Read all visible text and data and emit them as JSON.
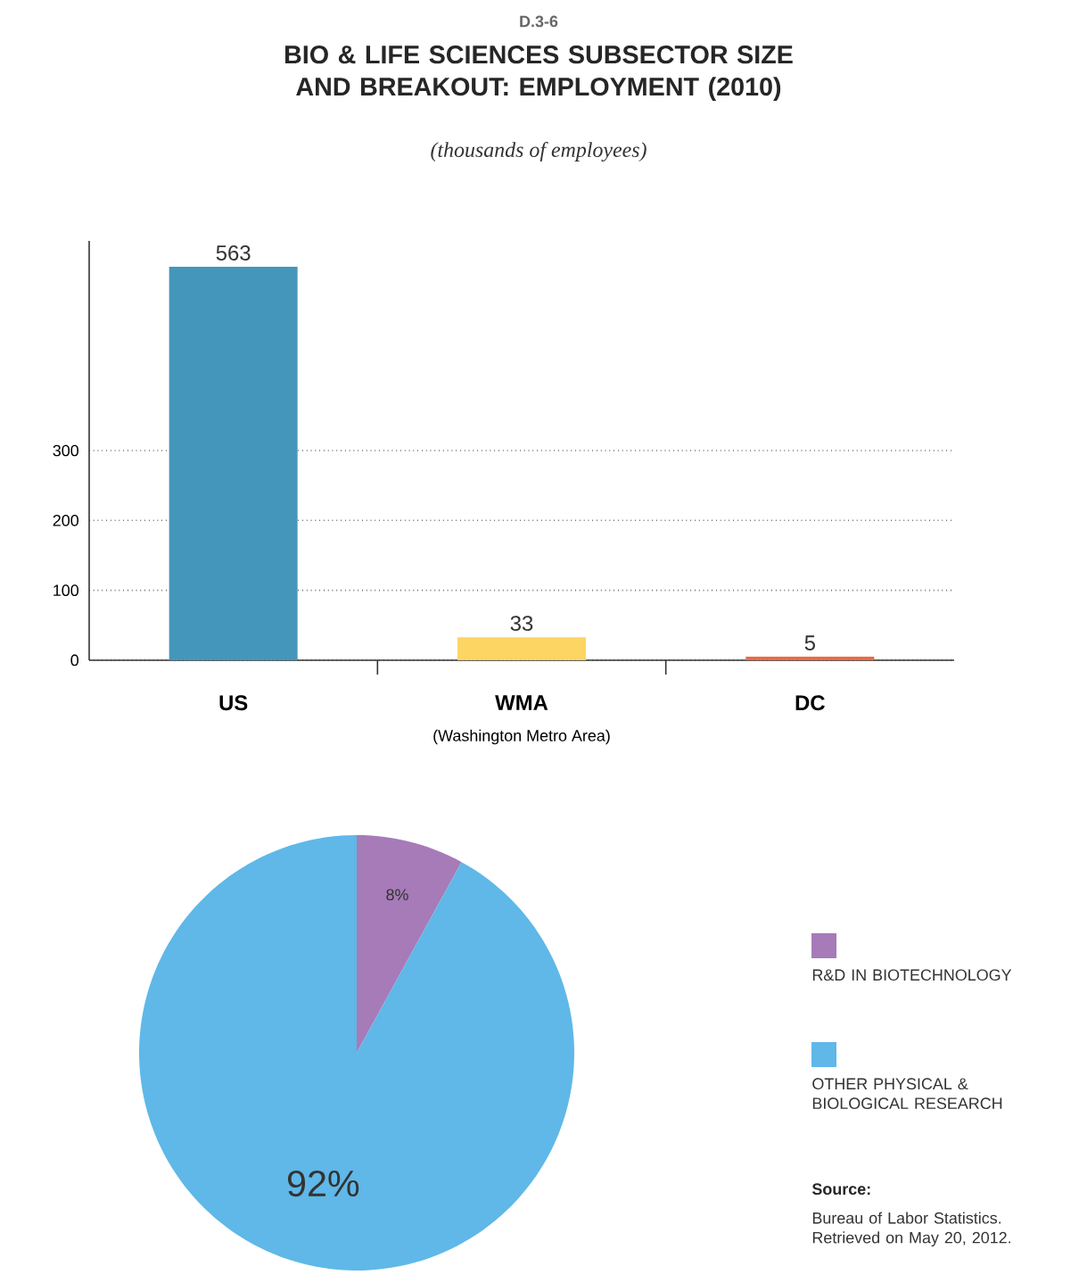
{
  "chart_data": [
    {
      "type": "bar",
      "title": "BIO & LIFE SCIENCES SUBSECTOR SIZE AND BREAKOUT: EMPLOYMENT (2010)",
      "subtitle": "(thousands of employees)",
      "categories": [
        "US",
        "WMA",
        "DC"
      ],
      "values": [
        563,
        33,
        5
      ],
      "colors": [
        "#4596bb",
        "#fdd563",
        "#ee6a45"
      ],
      "ylim": [
        0,
        600
      ],
      "yticks": [
        0,
        100,
        200,
        300
      ],
      "grid": "y",
      "data_labels": true,
      "annotations": [
        "D.3-6",
        "(Washington Metro Area)"
      ]
    },
    {
      "type": "pie",
      "categories": [
        "R&D IN BIOTECHNOLOGY",
        "OTHER PHYSICAL & BIOLOGICAL RESEARCH"
      ],
      "values": [
        8,
        92
      ],
      "colors": [
        "#a67bb8",
        "#5fb8e8"
      ],
      "value_labels": [
        "8%",
        "92%"
      ],
      "legend": "right",
      "annotations": [
        "Source:",
        "Bureau of Labor Statistics. Retrieved on May 20, 2012."
      ]
    }
  ]
}
